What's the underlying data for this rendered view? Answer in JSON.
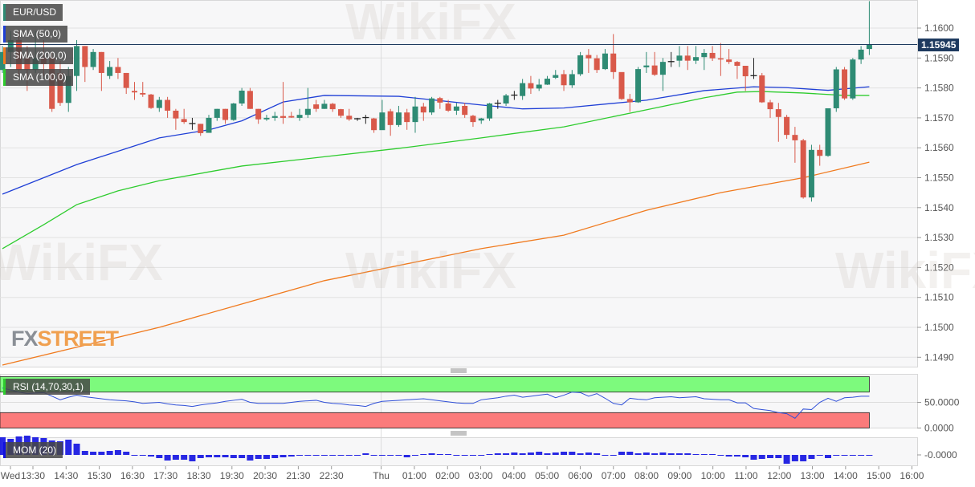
{
  "legend": {
    "symbol": "EUR/USD",
    "sma50": "SMA (50,0)",
    "sma200": "SMA (200,0)",
    "sma100": "SMA (100,0)",
    "rsi": "RSI (14,70,30,1)",
    "mom": "MOM (20)"
  },
  "logo": {
    "part1": "FX",
    "part2": "STREET"
  },
  "watermark": "WikiFX",
  "current_price": "1.15945",
  "colors": {
    "up": "#2e8b74",
    "down": "#d9594a",
    "sma50": "#1f3fd6",
    "sma100": "#2ecc2e",
    "sma200": "#f07a1e",
    "price_line": "#1e3a5f",
    "rsi_line": "#3050d8",
    "mom_bar": "#1010e0",
    "rsi_overbought": "#7dfa7d",
    "rsi_oversold": "#fb7b7b"
  },
  "chart_data": {
    "type": "candlestick",
    "title": "EUR/USD",
    "price_axis": {
      "ticks": [
        "1.1600",
        "1.1590",
        "1.1580",
        "1.1570",
        "1.1560",
        "1.1550",
        "1.1540",
        "1.1530",
        "1.1520",
        "1.1510",
        "1.1500",
        "1.1490"
      ],
      "range": [
        1.14845,
        1.16094
      ]
    },
    "time_axis": {
      "ticks": [
        "Wed",
        "13:30",
        "14:30",
        "15:30",
        "16:30",
        "17:30",
        "18:30",
        "19:30",
        "20:30",
        "21:30",
        "22:30",
        "Thu",
        "01:00",
        "02:00",
        "03:00",
        "04:00",
        "05:00",
        "06:00",
        "07:00",
        "08:00",
        "09:00",
        "10:00",
        "11:00",
        "12:00",
        "13:00",
        "14:00",
        "15:00",
        "16:00"
      ]
    },
    "candles_ohlc": [
      [
        1.1586,
        1.1594,
        1.1585,
        1.1592
      ],
      [
        1.1592,
        1.1599,
        1.1587,
        1.1596
      ],
      [
        1.1596,
        1.1599,
        1.1584,
        1.1586
      ],
      [
        1.159,
        1.1594,
        1.1579,
        1.1586
      ],
      [
        1.1586,
        1.1599,
        1.1585,
        1.159
      ],
      [
        1.159,
        1.1596,
        1.1584,
        1.1588
      ],
      [
        1.159,
        1.1592,
        1.1572,
        1.1573
      ],
      [
        1.1585,
        1.1589,
        1.1574,
        1.1575
      ],
      [
        1.1575,
        1.1587,
        1.1572,
        1.1584
      ],
      [
        1.1584,
        1.1596,
        1.1579,
        1.1594
      ],
      [
        1.1594,
        1.1594,
        1.1582,
        1.1587
      ],
      [
        1.1587,
        1.1593,
        1.1586,
        1.1592
      ],
      [
        1.1592,
        1.1592,
        1.1579,
        1.1585
      ],
      [
        1.1584,
        1.1589,
        1.1583,
        1.1587
      ],
      [
        1.1587,
        1.159,
        1.1583,
        1.1585
      ],
      [
        1.1585,
        1.1585,
        1.1578,
        1.158
      ],
      [
        1.1579,
        1.1582,
        1.1576,
        1.15785
      ],
      [
        1.15783,
        1.1582,
        1.1577,
        1.15778
      ],
      [
        1.15778,
        1.1578,
        1.1573,
        1.15733
      ],
      [
        1.15733,
        1.1577,
        1.1572,
        1.1576
      ],
      [
        1.1576,
        1.1577,
        1.157,
        1.15724
      ],
      [
        1.15724,
        1.1573,
        1.1566,
        1.15698
      ],
      [
        1.15696,
        1.1573,
        1.1568,
        1.15686
      ],
      [
        1.1568,
        1.157,
        1.1566,
        1.15681
      ],
      [
        1.1568,
        1.1568,
        1.1564,
        1.15649
      ],
      [
        1.1565,
        1.1571,
        1.1565,
        1.157
      ],
      [
        1.157,
        1.1573,
        1.1569,
        1.1573
      ],
      [
        1.1573,
        1.1573,
        1.1568,
        1.15693
      ],
      [
        1.15693,
        1.1575,
        1.1569,
        1.15748
      ],
      [
        1.15748,
        1.158,
        1.1574,
        1.15791
      ],
      [
        1.1579,
        1.158,
        1.1573,
        1.1573
      ],
      [
        1.1573,
        1.1573,
        1.1568,
        1.15695
      ],
      [
        1.15695,
        1.1571,
        1.1569,
        1.157
      ],
      [
        1.157,
        1.1572,
        1.1569,
        1.15706
      ],
      [
        1.15706,
        1.1582,
        1.1568,
        1.157
      ],
      [
        1.15706,
        1.1572,
        1.157,
        1.15701
      ],
      [
        1.157,
        1.1573,
        1.1569,
        1.1571
      ],
      [
        1.1571,
        1.158,
        1.157,
        1.1573
      ],
      [
        1.15745,
        1.1576,
        1.1572,
        1.1573
      ],
      [
        1.1573,
        1.1576,
        1.1573,
        1.15747
      ],
      [
        1.15747,
        1.1575,
        1.1572,
        1.15729
      ],
      [
        1.15729,
        1.1573,
        1.157,
        1.15707
      ],
      [
        1.15707,
        1.1573,
        1.1569,
        1.15695
      ],
      [
        1.15696,
        1.157,
        1.1569,
        1.15697
      ],
      [
        1.157,
        1.1571,
        1.1568,
        1.15701
      ],
      [
        1.15698,
        1.157,
        1.1565,
        1.15659
      ],
      [
        1.15659,
        1.1576,
        1.1566,
        1.15718
      ],
      [
        1.15722,
        1.1573,
        1.1564,
        1.15676
      ],
      [
        1.15676,
        1.1574,
        1.1567,
        1.15718
      ],
      [
        1.15718,
        1.1573,
        1.1566,
        1.15686
      ],
      [
        1.15686,
        1.1577,
        1.1565,
        1.15738
      ],
      [
        1.15738,
        1.1575,
        1.1569,
        1.15718
      ],
      [
        1.15718,
        1.1577,
        1.1571,
        1.15765
      ],
      [
        1.15766,
        1.1577,
        1.1573,
        1.15751
      ],
      [
        1.15748,
        1.1576,
        1.1572,
        1.15724
      ],
      [
        1.15724,
        1.1575,
        1.1571,
        1.15738
      ],
      [
        1.1574,
        1.1575,
        1.157,
        1.1571
      ],
      [
        1.15707,
        1.1571,
        1.1567,
        1.15686
      ],
      [
        1.15691,
        1.157,
        1.1568,
        1.15698
      ],
      [
        1.15698,
        1.1575,
        1.1569,
        1.15748
      ],
      [
        1.15748,
        1.1576,
        1.1573,
        1.15749
      ],
      [
        1.15748,
        1.1578,
        1.1574,
        1.15775
      ],
      [
        1.15775,
        1.1579,
        1.1576,
        1.15776
      ],
      [
        1.15773,
        1.1583,
        1.1576,
        1.15816
      ],
      [
        1.15816,
        1.1584,
        1.1578,
        1.15798
      ],
      [
        1.15798,
        1.1583,
        1.1579,
        1.15811
      ],
      [
        1.15811,
        1.1584,
        1.1581,
        1.15831
      ],
      [
        1.15834,
        1.1586,
        1.1583,
        1.15843
      ],
      [
        1.15846,
        1.1586,
        1.1579,
        1.15809
      ],
      [
        1.15809,
        1.1586,
        1.158,
        1.15846
      ],
      [
        1.15846,
        1.1592,
        1.1584,
        1.15909
      ],
      [
        1.1591,
        1.1593,
        1.1585,
        1.15899
      ],
      [
        1.15899,
        1.1591,
        1.1585,
        1.1586
      ],
      [
        1.15863,
        1.1593,
        1.1586,
        1.15915
      ],
      [
        1.15915,
        1.1598,
        1.1583,
        1.15853
      ],
      [
        1.15853,
        1.1585,
        1.1576,
        1.15763
      ],
      [
        1.15763,
        1.1578,
        1.1572,
        1.15752
      ],
      [
        1.15752,
        1.1587,
        1.1575,
        1.15863
      ],
      [
        1.15869,
        1.1592,
        1.1585,
        1.15875
      ],
      [
        1.15875,
        1.1592,
        1.1584,
        1.15844
      ],
      [
        1.15844,
        1.159,
        1.1579,
        1.15887
      ],
      [
        1.15887,
        1.1592,
        1.1587,
        1.15888
      ],
      [
        1.15891,
        1.1594,
        1.1587,
        1.15908
      ],
      [
        1.15908,
        1.1594,
        1.1586,
        1.15891
      ],
      [
        1.15891,
        1.1594,
        1.1588,
        1.15903
      ],
      [
        1.15903,
        1.1593,
        1.1586,
        1.15917
      ],
      [
        1.15917,
        1.1594,
        1.1589,
        1.15899
      ],
      [
        1.15899,
        1.1595,
        1.1584,
        1.15895
      ],
      [
        1.15895,
        1.1593,
        1.1588,
        1.15887
      ],
      [
        1.15887,
        1.1589,
        1.1583,
        1.15874
      ],
      [
        1.15874,
        1.1587,
        1.1579,
        1.15839
      ],
      [
        1.15839,
        1.159,
        1.1583,
        1.15841
      ],
      [
        1.15842,
        1.1585,
        1.1575,
        1.15752
      ],
      [
        1.15752,
        1.1576,
        1.157,
        1.15729
      ],
      [
        1.15729,
        1.1575,
        1.1562,
        1.15703
      ],
      [
        1.15703,
        1.1571,
        1.1563,
        1.15643
      ],
      [
        1.15643,
        1.1567,
        1.1555,
        1.15625
      ],
      [
        1.15625,
        1.1563,
        1.1543,
        1.15434
      ],
      [
        1.15434,
        1.1561,
        1.1542,
        1.15593
      ],
      [
        1.15593,
        1.1561,
        1.1554,
        1.15573
      ],
      [
        1.15573,
        1.1573,
        1.1557,
        1.15732
      ],
      [
        1.15732,
        1.1587,
        1.1572,
        1.15862
      ],
      [
        1.15862,
        1.1587,
        1.1576,
        1.15765
      ],
      [
        1.15765,
        1.159,
        1.1576,
        1.15895
      ],
      [
        1.15895,
        1.1594,
        1.1588,
        1.15928
      ],
      [
        1.1593,
        1.1609,
        1.1591,
        1.15945
      ]
    ],
    "sma": [
      {
        "name": "SMA (50,0)",
        "points": [
          [
            0,
            1.15445
          ],
          [
            9,
            1.15544
          ],
          [
            19,
            1.15633
          ],
          [
            25,
            1.1566
          ],
          [
            29,
            1.1569
          ],
          [
            34,
            1.15753
          ],
          [
            39,
            1.15775
          ],
          [
            48,
            1.15772
          ],
          [
            58,
            1.15743
          ],
          [
            63,
            1.1573
          ],
          [
            68,
            1.15733
          ],
          [
            78,
            1.15759
          ],
          [
            85,
            1.15791
          ],
          [
            91,
            1.15804
          ],
          [
            95,
            1.15801
          ],
          [
            100,
            1.15792
          ],
          [
            105,
            1.15804
          ]
        ]
      },
      {
        "name": "SMA (100,0)",
        "points": [
          [
            0,
            1.15263
          ],
          [
            5,
            1.15343
          ],
          [
            9,
            1.1541
          ],
          [
            14,
            1.15456
          ],
          [
            19,
            1.1549
          ],
          [
            29,
            1.15539
          ],
          [
            39,
            1.1557
          ],
          [
            48,
            1.15598
          ],
          [
            58,
            1.15633
          ],
          [
            68,
            1.1567
          ],
          [
            78,
            1.15727
          ],
          [
            85,
            1.15767
          ],
          [
            89,
            1.15786
          ],
          [
            92,
            1.15788
          ],
          [
            97,
            1.15783
          ],
          [
            102,
            1.15775
          ],
          [
            105,
            1.15775
          ]
        ]
      },
      {
        "name": "SMA (200,0)",
        "points": [
          [
            0,
            1.14874
          ],
          [
            19,
            1.15
          ],
          [
            39,
            1.15156
          ],
          [
            58,
            1.15263
          ],
          [
            68,
            1.15308
          ],
          [
            78,
            1.15391
          ],
          [
            87,
            1.1545
          ],
          [
            97,
            1.155
          ],
          [
            105,
            1.15552
          ]
        ]
      }
    ],
    "rsi": {
      "name": "RSI (14,70,30,1)",
      "overbought": 70,
      "oversold": 30,
      "range": [
        0,
        100
      ],
      "ticks": [
        "50.0000",
        "0.0000"
      ],
      "values": [
        78,
        74,
        70,
        67,
        68,
        69,
        62,
        55,
        60,
        64,
        61,
        59,
        57,
        55,
        54,
        53,
        51,
        48,
        49,
        50,
        47,
        45,
        44,
        42,
        45,
        47,
        49,
        52,
        54,
        56,
        50,
        48,
        48,
        48,
        48,
        50,
        52,
        53,
        54,
        50,
        48,
        47,
        45,
        44,
        42,
        48,
        52,
        53,
        54,
        55,
        56,
        57,
        55,
        53,
        51,
        49,
        48,
        48,
        55,
        57,
        59,
        62,
        64,
        60,
        62,
        64,
        66,
        59,
        64,
        70,
        69,
        62,
        67,
        58,
        48,
        45,
        58,
        56,
        55,
        59,
        60,
        61,
        59,
        60,
        61,
        57,
        56,
        55,
        55,
        49,
        49,
        38,
        36,
        34,
        30,
        28,
        19,
        37,
        36,
        50,
        58,
        52,
        59,
        60,
        62,
        62
      ]
    },
    "mom": {
      "name": "MOM (20)",
      "ticks": [
        "-0.0000"
      ],
      "values": [
        0.0022,
        0.002,
        0.0023,
        0.0024,
        0.0022,
        0.0021,
        0.0018,
        0.0017,
        0.0019,
        0.0014,
        0.0005,
        0.0004,
        0.0004,
        0.0005,
        0.0006,
        0.0004,
        0,
        0,
        -0.0002,
        -0.0004,
        -0.0007,
        -0.0006,
        -0.0006,
        -0.0008,
        -0.0004,
        -0.0003,
        -0.0003,
        -0.0003,
        -0.0004,
        -0.0004,
        -0.0007,
        -0.0005,
        -0.0005,
        -0.0004,
        -0.0003,
        -0.0002,
        -0.0001,
        0,
        0,
        0,
        0,
        0,
        0,
        0,
        0.0002,
        -0.0001,
        0,
        0,
        0,
        -0.0003,
        0,
        0.0001,
        0.0002,
        0.0001,
        0.0001,
        -0.0001,
        -0.0001,
        -0.0001,
        0,
        0.0001,
        0.0002,
        0.0002,
        0.0003,
        0.0002,
        0.0003,
        0.0004,
        0.0002,
        0.0003,
        0.0004,
        0.0004,
        0.0002,
        0.0003,
        0.0002,
        0,
        0,
        0.0004,
        0.0004,
        0.0002,
        0.0003,
        0.0002,
        0.0003,
        0.0002,
        0.0002,
        0.0002,
        0.0001,
        0.0001,
        0.0001,
        0,
        -0.0002,
        -0.0002,
        -0.0003,
        -0.0006,
        -0.0005,
        -0.0004,
        -0.0004,
        -0.0011,
        -0.0008,
        -0.0008,
        -0.0005,
        -0.0001,
        -0.0004,
        0,
        0,
        0,
        0,
        0
      ]
    }
  }
}
